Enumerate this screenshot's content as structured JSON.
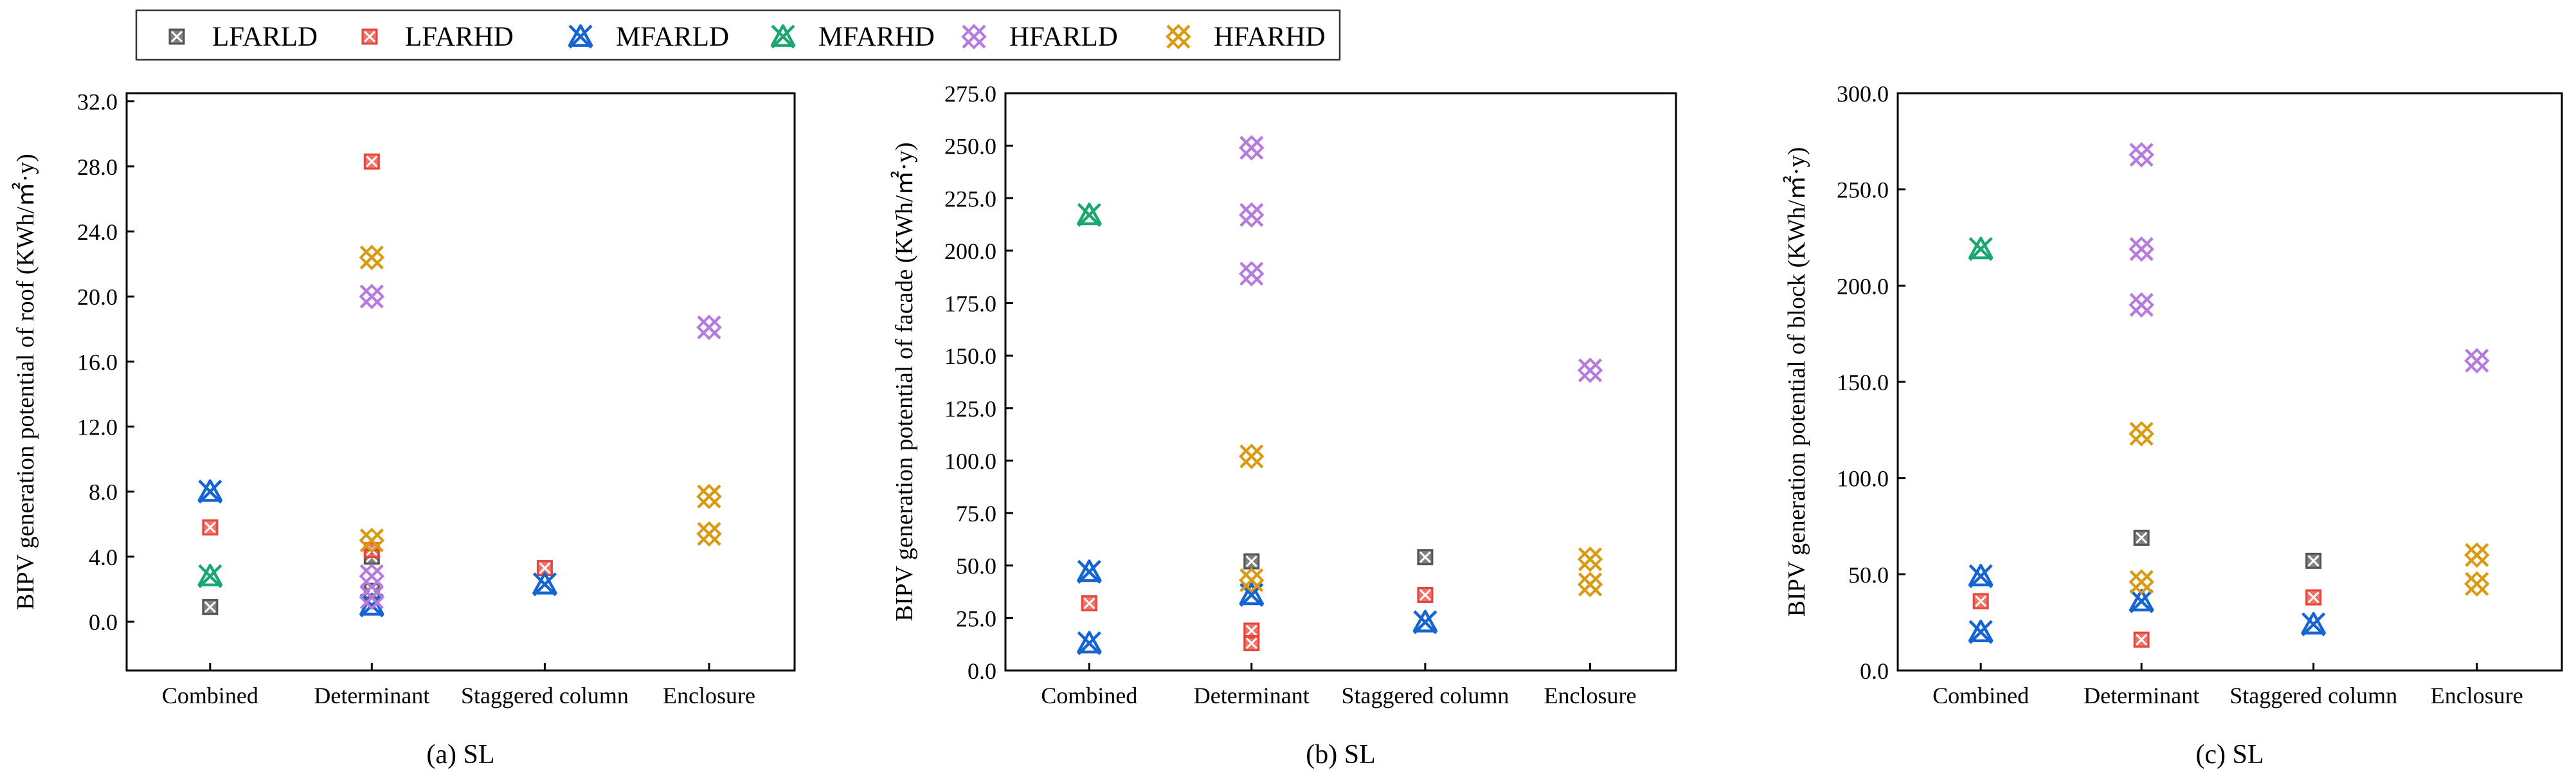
{
  "legend": {
    "items": [
      {
        "label": "LFARLD",
        "color": "#555555",
        "marker": "x-square-icon"
      },
      {
        "label": "LFARHD",
        "color": "#e8443a",
        "marker": "x-square-icon"
      },
      {
        "label": "MFARLD",
        "color": "#1464d2",
        "marker": "x-triangle-icon"
      },
      {
        "label": "MFARHD",
        "color": "#1aa870",
        "marker": "x-triangle-icon"
      },
      {
        "label": "HFARLD",
        "color": "#b77be0",
        "marker": "x-diamond-icon"
      },
      {
        "label": "HFARHD",
        "color": "#d99a14",
        "marker": "x-diamond-icon"
      }
    ]
  },
  "chart_data": [
    {
      "type": "scatter",
      "caption": "(a) SL",
      "ylabel": "BIPV generation potential of roof (KWh/㎡·y)",
      "categories": [
        "Combined",
        "Determinant",
        "Staggered column",
        "Enclosure"
      ],
      "ylim": [
        -3.0,
        32.5
      ],
      "yticks": [
        0,
        4,
        8,
        12,
        16,
        20,
        24,
        28,
        32
      ],
      "ytick_labels": [
        "0.0",
        "4.0",
        "8.0",
        "12.0",
        "16.0",
        "20.0",
        "24.0",
        "28.0",
        "32.0"
      ],
      "series": [
        {
          "name": "LFARLD",
          "points": [
            [
              "Combined",
              0.9
            ],
            [
              "Determinant",
              4.0
            ],
            [
              "Determinant",
              1.9
            ]
          ]
        },
        {
          "name": "LFARHD",
          "points": [
            [
              "Combined",
              5.8
            ],
            [
              "Determinant",
              28.3
            ],
            [
              "Determinant",
              4.4
            ],
            [
              "Staggered column",
              3.3
            ]
          ]
        },
        {
          "name": "MFARLD",
          "points": [
            [
              "Combined",
              8.0
            ],
            [
              "Determinant",
              1.0
            ],
            [
              "Staggered column",
              2.3
            ]
          ]
        },
        {
          "name": "MFARHD",
          "points": [
            [
              "Combined",
              2.8
            ]
          ]
        },
        {
          "name": "HFARLD",
          "points": [
            [
              "Determinant",
              20.0
            ],
            [
              "Determinant",
              2.8
            ],
            [
              "Determinant",
              1.5
            ],
            [
              "Enclosure",
              18.1
            ]
          ]
        },
        {
          "name": "HFARHD",
          "points": [
            [
              "Determinant",
              22.4
            ],
            [
              "Determinant",
              5.0
            ],
            [
              "Enclosure",
              7.7
            ],
            [
              "Enclosure",
              5.4
            ]
          ]
        }
      ]
    },
    {
      "type": "scatter",
      "caption": "(b) SL",
      "ylabel": "BIPV generation potential of facade (KWh/㎡·y)",
      "categories": [
        "Combined",
        "Determinant",
        "Staggered column",
        "Enclosure"
      ],
      "ylim": [
        0,
        275
      ],
      "yticks": [
        0,
        25,
        50,
        75,
        100,
        125,
        150,
        175,
        200,
        225,
        250,
        275
      ],
      "ytick_labels": [
        "0.0",
        "25.0",
        "50.0",
        "75.0",
        "100.0",
        "125.0",
        "150.0",
        "175.0",
        "200.0",
        "225.0",
        "250.0",
        "275.0"
      ],
      "series": [
        {
          "name": "LFARLD",
          "points": [
            [
              "Determinant",
              52.0
            ],
            [
              "Staggered column",
              54.0
            ]
          ]
        },
        {
          "name": "LFARHD",
          "points": [
            [
              "Combined",
              32.0
            ],
            [
              "Determinant",
              19.0
            ],
            [
              "Determinant",
              13.0
            ],
            [
              "Staggered column",
              36.0
            ]
          ]
        },
        {
          "name": "MFARLD",
          "points": [
            [
              "Combined",
              47.0
            ],
            [
              "Combined",
              13.0
            ],
            [
              "Determinant",
              36.0
            ],
            [
              "Staggered column",
              23.0
            ]
          ]
        },
        {
          "name": "MFARHD",
          "points": [
            [
              "Combined",
              217.0
            ]
          ]
        },
        {
          "name": "HFARLD",
          "points": [
            [
              "Determinant",
              249.0
            ],
            [
              "Determinant",
              217.0
            ],
            [
              "Determinant",
              189.0
            ],
            [
              "Enclosure",
              143.0
            ]
          ]
        },
        {
          "name": "HFARHD",
          "points": [
            [
              "Determinant",
              102.0
            ],
            [
              "Determinant",
              43.0
            ],
            [
              "Enclosure",
              53.0
            ],
            [
              "Enclosure",
              41.0
            ]
          ]
        }
      ]
    },
    {
      "type": "scatter",
      "caption": "(c) SL",
      "ylabel": "BIPV generation potential of block (KWh/㎡·y)",
      "categories": [
        "Combined",
        "Determinant",
        "Staggered column",
        "Enclosure"
      ],
      "ylim": [
        0,
        300
      ],
      "yticks": [
        0,
        50,
        100,
        150,
        200,
        250,
        300
      ],
      "ytick_labels": [
        "0.0",
        "50.0",
        "100.0",
        "150.0",
        "200.0",
        "250.0",
        "300.0"
      ],
      "series": [
        {
          "name": "LFARLD",
          "points": [
            [
              "Determinant",
              69.0
            ],
            [
              "Staggered column",
              57.0
            ]
          ]
        },
        {
          "name": "LFARHD",
          "points": [
            [
              "Combined",
              36.0
            ],
            [
              "Determinant",
              16.0
            ],
            [
              "Staggered column",
              38.0
            ]
          ]
        },
        {
          "name": "MFARLD",
          "points": [
            [
              "Combined",
              49.0
            ],
            [
              "Combined",
              20.0
            ],
            [
              "Determinant",
              36.0
            ],
            [
              "Staggered column",
              24.0
            ]
          ]
        },
        {
          "name": "MFARHD",
          "points": [
            [
              "Combined",
              219.0
            ]
          ]
        },
        {
          "name": "HFARLD",
          "points": [
            [
              "Determinant",
              268.0
            ],
            [
              "Determinant",
              219.0
            ],
            [
              "Determinant",
              190.0
            ],
            [
              "Enclosure",
              161.0
            ]
          ]
        },
        {
          "name": "HFARHD",
          "points": [
            [
              "Determinant",
              123.0
            ],
            [
              "Determinant",
              46.0
            ],
            [
              "Enclosure",
              60.0
            ],
            [
              "Enclosure",
              45.0
            ]
          ]
        }
      ]
    }
  ]
}
